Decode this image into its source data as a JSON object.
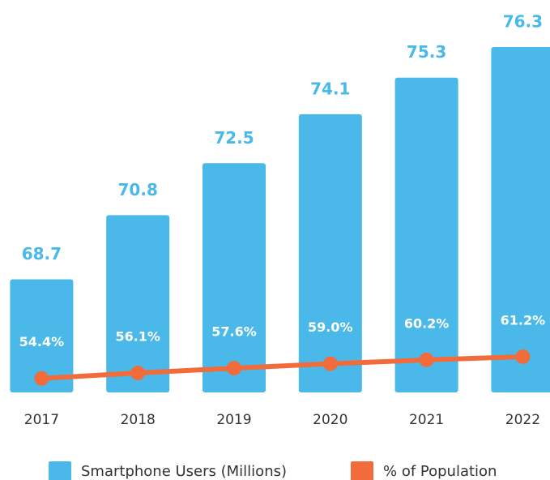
{
  "chart_data": {
    "type": "bar",
    "categories": [
      "2017",
      "2018",
      "2019",
      "2020",
      "2021",
      "2022"
    ],
    "ylim": [
      65,
      77
    ],
    "y2lim": [
      50,
      165
    ],
    "series": [
      {
        "name": "Smartphone Users (Millions)",
        "type": "bar",
        "color": "#4ab9ea",
        "values": [
          68.7,
          70.8,
          72.5,
          74.1,
          75.3,
          76.3
        ]
      },
      {
        "name": "% of Population",
        "type": "line",
        "axis": "y2",
        "color": "#f26b3a",
        "values": [
          54.4,
          56.1,
          57.6,
          59.0,
          60.2,
          61.2
        ],
        "value_labels": [
          "54.4%",
          "56.1%",
          "57.6%",
          "59.0%",
          "60.2%",
          "61.2%"
        ]
      }
    ],
    "legend": "bottom"
  }
}
